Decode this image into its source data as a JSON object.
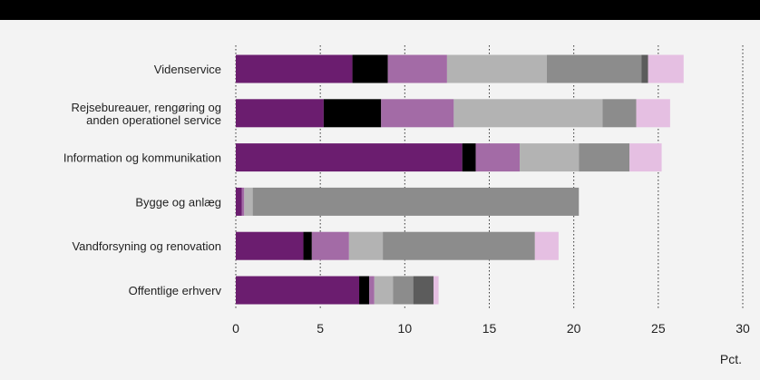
{
  "chart_data": {
    "type": "bar",
    "orientation": "horizontal",
    "stacked": true,
    "xlabel": "Pct.",
    "xlim": [
      0,
      30
    ],
    "xticks": [
      0,
      5,
      10,
      15,
      20,
      25,
      30
    ],
    "grid": "vertical dotted",
    "legend": "none",
    "categories": [
      [
        "Videnservice"
      ],
      [
        "Rejsebureauer, rengøring og",
        "anden operationel service"
      ],
      [
        "Information og kommunikation"
      ],
      [
        "Bygge og anlæg"
      ],
      [
        "Vandforsyning og renovation"
      ],
      [
        "Offentlige erhverv"
      ]
    ],
    "series": [
      {
        "color": "#6b1d6f",
        "values": [
          6.9,
          5.2,
          13.4,
          0.35,
          4.0,
          7.3
        ]
      },
      {
        "color": "#000000",
        "values": [
          2.1,
          3.4,
          0.8,
          0.0,
          0.5,
          0.6
        ]
      },
      {
        "color": "#a36ba6",
        "values": [
          3.5,
          4.3,
          2.6,
          0.15,
          2.2,
          0.3
        ]
      },
      {
        "color": "#b3b3b3",
        "values": [
          5.9,
          8.8,
          3.5,
          0.5,
          2.0,
          1.1
        ]
      },
      {
        "color": "#8c8c8c",
        "values": [
          5.6,
          2.0,
          3.0,
          19.3,
          9.0,
          1.2
        ]
      },
      {
        "color": "#5c5c5c",
        "values": [
          0.4,
          0.0,
          0.0,
          0.0,
          0.0,
          1.2
        ]
      },
      {
        "color": "#e5bfe2",
        "values": [
          2.1,
          2.0,
          1.9,
          0.0,
          1.4,
          0.3
        ]
      }
    ]
  }
}
